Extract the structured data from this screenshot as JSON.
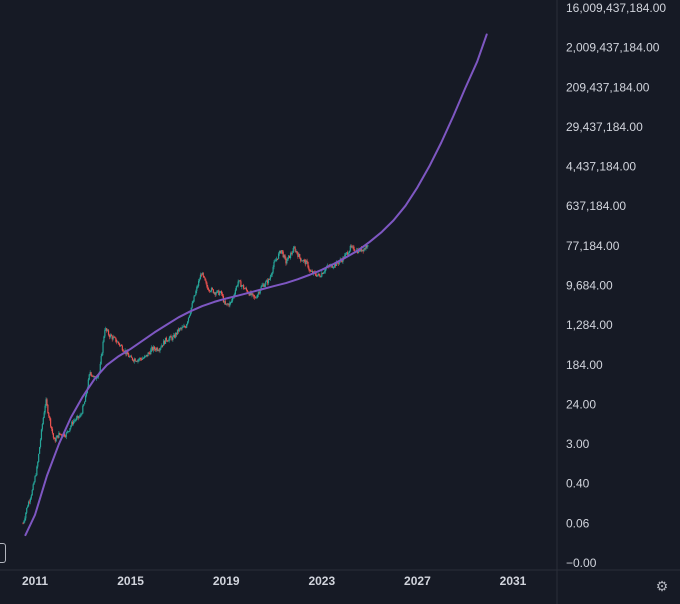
{
  "chart_data": {
    "type": "candlestick",
    "y_scale": "log",
    "colors": {
      "background": "#161a25",
      "up_candle": "#26a69a",
      "down_candle": "#ef5350",
      "curve": "#7e57c2",
      "axis_text": "#d1d4dc",
      "axis_line": "#363a45"
    },
    "y_tick_labels": [
      "16,009,437,184.00",
      "2,009,437,184.00",
      "209,437,184.00",
      "29,437,184.00",
      "4,437,184.00",
      "637,184.00",
      "77,184.00",
      "9,684.00",
      "1,284.00",
      "184.00",
      "24.00",
      "3.00",
      "0.40",
      "0.06",
      "−0.00"
    ],
    "y_tick_values": [
      16009437184,
      2009437184,
      209437184,
      29437184,
      4437184,
      637184,
      77184,
      9684,
      1284,
      184,
      24,
      3,
      0.4,
      0.06,
      0
    ],
    "x_tick_labels": [
      "2011",
      "2015",
      "2019",
      "2023",
      "2027",
      "2031"
    ],
    "x_tick_values": [
      2011,
      2015,
      2019,
      2023,
      2027,
      2031
    ],
    "price_series": [
      {
        "t": 2010.5,
        "v": 0.06
      },
      {
        "t": 2010.7,
        "v": 0.15
      },
      {
        "t": 2010.9,
        "v": 0.3
      },
      {
        "t": 2011.1,
        "v": 1.0
      },
      {
        "t": 2011.3,
        "v": 8
      },
      {
        "t": 2011.45,
        "v": 30
      },
      {
        "t": 2011.6,
        "v": 12
      },
      {
        "t": 2011.8,
        "v": 3.5
      },
      {
        "t": 2012.0,
        "v": 5
      },
      {
        "t": 2012.3,
        "v": 5
      },
      {
        "t": 2012.6,
        "v": 10
      },
      {
        "t": 2012.9,
        "v": 13
      },
      {
        "t": 2013.1,
        "v": 30
      },
      {
        "t": 2013.3,
        "v": 130
      },
      {
        "t": 2013.5,
        "v": 90
      },
      {
        "t": 2013.7,
        "v": 130
      },
      {
        "t": 2013.92,
        "v": 1100
      },
      {
        "t": 2014.1,
        "v": 800
      },
      {
        "t": 2014.4,
        "v": 600
      },
      {
        "t": 2014.7,
        "v": 400
      },
      {
        "t": 2015.0,
        "v": 250
      },
      {
        "t": 2015.3,
        "v": 240
      },
      {
        "t": 2015.6,
        "v": 260
      },
      {
        "t": 2015.9,
        "v": 400
      },
      {
        "t": 2016.2,
        "v": 420
      },
      {
        "t": 2016.5,
        "v": 650
      },
      {
        "t": 2016.8,
        "v": 700
      },
      {
        "t": 2017.0,
        "v": 1000
      },
      {
        "t": 2017.3,
        "v": 1200
      },
      {
        "t": 2017.6,
        "v": 4000
      },
      {
        "t": 2017.96,
        "v": 19000
      },
      {
        "t": 2018.2,
        "v": 9000
      },
      {
        "t": 2018.5,
        "v": 7000
      },
      {
        "t": 2018.8,
        "v": 6500
      },
      {
        "t": 2018.95,
        "v": 3500
      },
      {
        "t": 2019.2,
        "v": 4000
      },
      {
        "t": 2019.5,
        "v": 12000
      },
      {
        "t": 2019.8,
        "v": 8000
      },
      {
        "t": 2020.2,
        "v": 5000
      },
      {
        "t": 2020.5,
        "v": 9500
      },
      {
        "t": 2020.8,
        "v": 13000
      },
      {
        "t": 2021.0,
        "v": 30000
      },
      {
        "t": 2021.3,
        "v": 63000
      },
      {
        "t": 2021.5,
        "v": 33000
      },
      {
        "t": 2021.85,
        "v": 68000
      },
      {
        "t": 2022.1,
        "v": 40000
      },
      {
        "t": 2022.4,
        "v": 30000
      },
      {
        "t": 2022.5,
        "v": 20000
      },
      {
        "t": 2022.9,
        "v": 16000
      },
      {
        "t": 2023.2,
        "v": 25000
      },
      {
        "t": 2023.6,
        "v": 30000
      },
      {
        "t": 2023.9,
        "v": 40000
      },
      {
        "t": 2024.2,
        "v": 70000
      },
      {
        "t": 2024.5,
        "v": 60000
      },
      {
        "t": 2024.8,
        "v": 68000
      },
      {
        "t": 2024.95,
        "v": 95000
      }
    ],
    "curve_series": [
      {
        "t": 2010.6,
        "v": 0.009
      },
      {
        "t": 2011.0,
        "v": 0.09
      },
      {
        "t": 2011.5,
        "v": 0.6
      },
      {
        "t": 2012.0,
        "v": 3
      },
      {
        "t": 2012.5,
        "v": 12
      },
      {
        "t": 2013.0,
        "v": 36
      },
      {
        "t": 2013.5,
        "v": 90
      },
      {
        "t": 2014.0,
        "v": 180
      },
      {
        "t": 2014.5,
        "v": 280
      },
      {
        "t": 2015.0,
        "v": 400
      },
      {
        "t": 2015.5,
        "v": 600
      },
      {
        "t": 2016.0,
        "v": 900
      },
      {
        "t": 2016.5,
        "v": 1300
      },
      {
        "t": 2017.0,
        "v": 1900
      },
      {
        "t": 2017.5,
        "v": 2600
      },
      {
        "t": 2018.0,
        "v": 3400
      },
      {
        "t": 2018.5,
        "v": 4200
      },
      {
        "t": 2019.0,
        "v": 5000
      },
      {
        "t": 2019.5,
        "v": 5800
      },
      {
        "t": 2020.0,
        "v": 6800
      },
      {
        "t": 2020.5,
        "v": 8000
      },
      {
        "t": 2021.0,
        "v": 9400
      },
      {
        "t": 2021.5,
        "v": 11000
      },
      {
        "t": 2022.0,
        "v": 13500
      },
      {
        "t": 2022.5,
        "v": 17000
      },
      {
        "t": 2023.0,
        "v": 22000
      },
      {
        "t": 2023.5,
        "v": 30000
      },
      {
        "t": 2024.0,
        "v": 42000
      },
      {
        "t": 2024.5,
        "v": 60000
      },
      {
        "t": 2025.0,
        "v": 95000
      },
      {
        "t": 2025.5,
        "v": 160000
      },
      {
        "t": 2026.0,
        "v": 300000
      },
      {
        "t": 2026.5,
        "v": 650000
      },
      {
        "t": 2027.0,
        "v": 1600000
      },
      {
        "t": 2027.5,
        "v": 4500000
      },
      {
        "t": 2028.0,
        "v": 14000000
      },
      {
        "t": 2028.5,
        "v": 50000000
      },
      {
        "t": 2029.0,
        "v": 200000000
      },
      {
        "t": 2029.5,
        "v": 900000000
      },
      {
        "t": 2029.9,
        "v": 4000000000
      }
    ]
  }
}
